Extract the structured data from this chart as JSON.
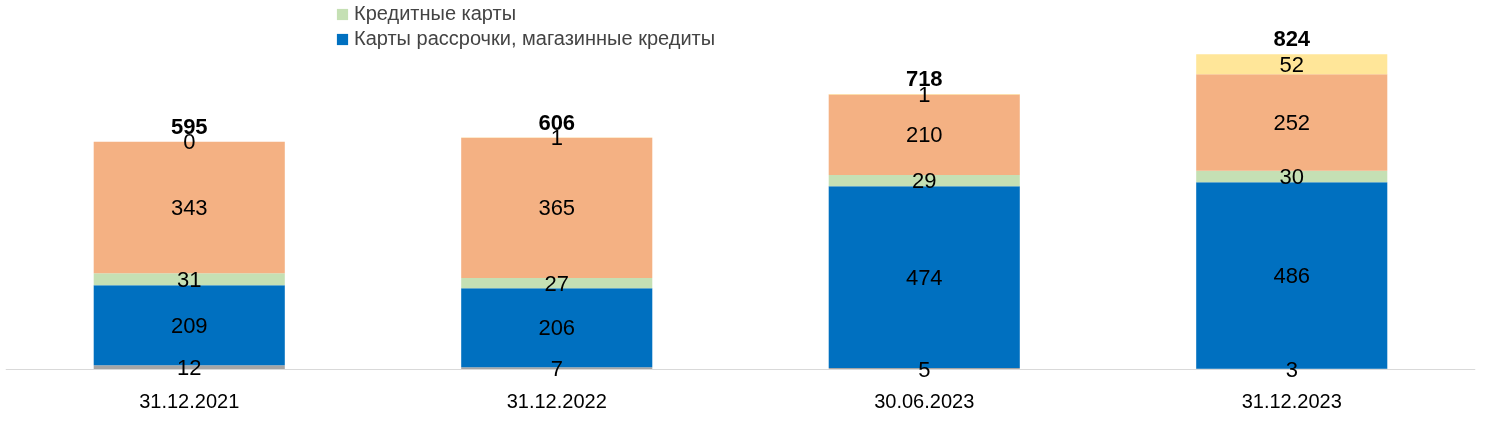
{
  "chart_data": {
    "type": "bar",
    "stacked": true,
    "categories": [
      "31.12.2021",
      "31.12.2022",
      "30.06.2023",
      "31.12.2023"
    ],
    "series": [
      {
        "color": "#a5a5a5",
        "values": [
          12,
          7,
          5,
          3
        ]
      },
      {
        "name": "Карты рассрочки, магазинные кредиты",
        "color": "#0070c0",
        "values": [
          209,
          206,
          474,
          486
        ]
      },
      {
        "name": "Кредитные карты",
        "color": "#c5e0b4",
        "values": [
          31,
          27,
          29,
          30
        ]
      },
      {
        "color": "#f4b183",
        "values": [
          343,
          365,
          210,
          252
        ]
      },
      {
        "color": "#ffe699",
        "values": [
          0,
          1,
          1,
          52
        ]
      }
    ],
    "data_labels": true,
    "totals": [
      "595",
      "606",
      "718",
      "824"
    ],
    "legend": "top",
    "tick_labels": "x",
    "grid": false
  }
}
